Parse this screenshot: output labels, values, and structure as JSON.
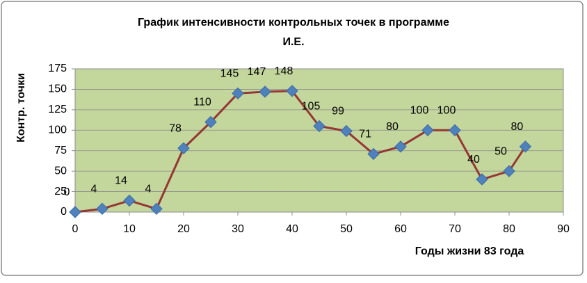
{
  "chart_data": {
    "type": "line",
    "title": [
      "График интенсивности контрольных точек   в программе",
      "И.Е."
    ],
    "x_label": "Годы жизни 83 года",
    "y_label": "Контр. точки",
    "x": [
      0,
      5,
      10,
      15,
      20,
      25,
      30,
      35,
      40,
      45,
      50,
      55,
      60,
      65,
      70,
      75,
      80,
      83
    ],
    "series": [
      {
        "line_color": "#953735",
        "marker_color": "#4f81bd",
        "values": [
          0,
          4,
          14,
          4,
          78,
          110,
          145,
          147,
          148,
          105,
          99,
          71,
          80,
          100,
          100,
          40,
          50,
          80
        ]
      }
    ],
    "xlim": [
      0,
      90
    ],
    "xticks": [
      0,
      10,
      20,
      30,
      40,
      50,
      60,
      70,
      80,
      90
    ],
    "ylim": [
      0,
      175
    ],
    "yticks": [
      0,
      25,
      50,
      75,
      100,
      125,
      150,
      175
    ],
    "grid": true,
    "plot_background": "#c3d69b"
  }
}
